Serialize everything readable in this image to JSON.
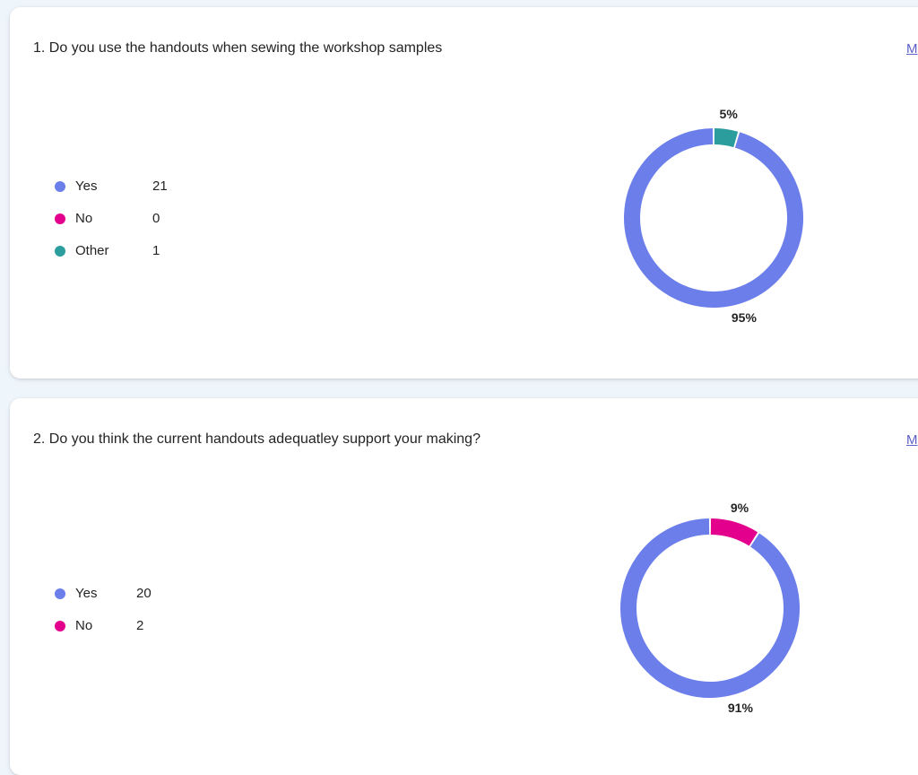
{
  "colors": {
    "yes": "#6b7eea",
    "no": "#e3008c",
    "other": "#2a9d9c",
    "link": "#5b5fc7"
  },
  "questions": [
    {
      "title": "1. Do you use the handouts when sewing the workshop samples",
      "more_link": "M",
      "legend": [
        {
          "label": "Yes",
          "count": "21",
          "color": "#6b7eea",
          "icon": "legend-dot"
        },
        {
          "label": "No",
          "count": "0",
          "color": "#e3008c",
          "icon": "legend-dot"
        },
        {
          "label": "Other",
          "count": "1",
          "color": "#2a9d9c",
          "icon": "legend-dot"
        }
      ]
    },
    {
      "title": "2. Do you think the current handouts adequatley support your making?",
      "more_link": "M",
      "legend": [
        {
          "label": "Yes",
          "count": "20",
          "color": "#6b7eea",
          "icon": "legend-dot"
        },
        {
          "label": "No",
          "count": "2",
          "color": "#e3008c",
          "icon": "legend-dot"
        }
      ]
    }
  ],
  "chart_data": [
    {
      "type": "pie",
      "categories": [
        "Yes",
        "No",
        "Other"
      ],
      "values": [
        21,
        0,
        1
      ],
      "percent_labels": [
        "95%",
        "",
        "5%"
      ],
      "colors": [
        "#6b7eea",
        "#e3008c",
        "#2a9d9c"
      ]
    },
    {
      "type": "pie",
      "categories": [
        "Yes",
        "No"
      ],
      "values": [
        20,
        2
      ],
      "percent_labels": [
        "91%",
        "9%"
      ],
      "colors": [
        "#6b7eea",
        "#e3008c"
      ]
    }
  ]
}
